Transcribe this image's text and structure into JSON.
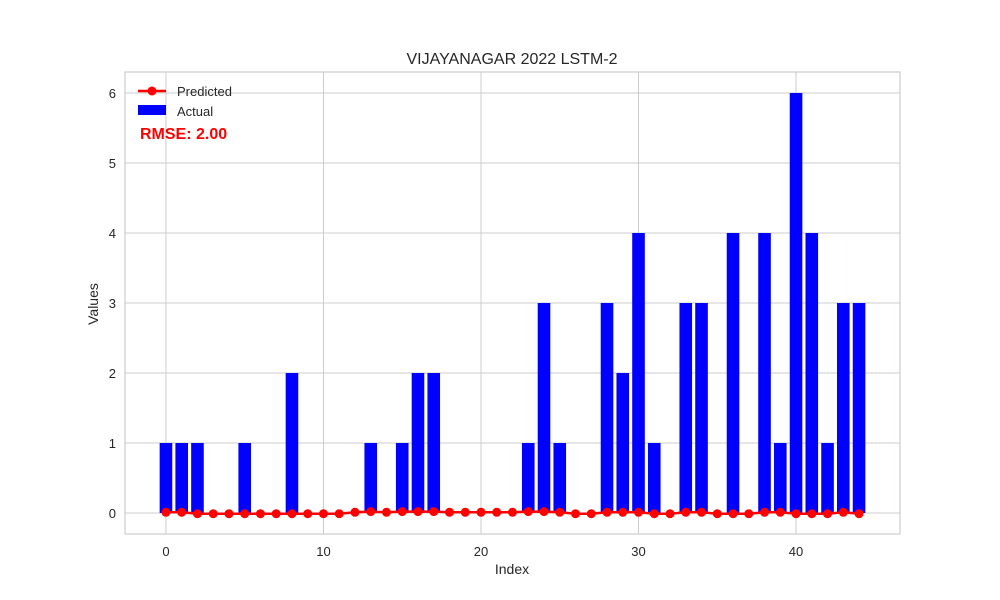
{
  "chart_data": {
    "type": "bar",
    "title": "VIJAYANAGAR 2022 LSTM-2",
    "xlabel": "Index",
    "ylabel": "Values",
    "xlim": [
      -2.6,
      46.6
    ],
    "ylim": [
      -0.3,
      6.3
    ],
    "xticks": [
      0,
      10,
      20,
      30,
      40
    ],
    "yticks": [
      0,
      1,
      2,
      3,
      4,
      5,
      6
    ],
    "grid": true,
    "legend_position": "top-left",
    "annotation": "RMSE: 2.00",
    "x": [
      0,
      1,
      2,
      3,
      4,
      5,
      6,
      7,
      8,
      9,
      10,
      11,
      12,
      13,
      14,
      15,
      16,
      17,
      18,
      19,
      20,
      21,
      22,
      23,
      24,
      25,
      26,
      27,
      28,
      29,
      30,
      31,
      32,
      33,
      34,
      35,
      36,
      37,
      38,
      39,
      40,
      41,
      42,
      43,
      44
    ],
    "series": [
      {
        "name": "Actual",
        "type": "bar",
        "color": "#0000ff",
        "values": [
          1,
          1,
          1,
          0,
          0,
          1,
          0,
          0,
          2,
          0,
          0,
          0,
          0,
          1,
          0,
          1,
          2,
          2,
          0,
          0,
          0,
          0,
          0,
          1,
          3,
          1,
          0,
          0,
          3,
          2,
          4,
          1,
          0,
          3,
          3,
          0,
          4,
          0,
          4,
          1,
          6,
          4,
          1,
          3,
          3
        ]
      },
      {
        "name": "Predicted",
        "type": "line",
        "color": "#ff0000",
        "values": [
          0.01,
          0.01,
          -0.01,
          -0.01,
          -0.01,
          -0.01,
          -0.01,
          -0.01,
          -0.01,
          -0.01,
          -0.01,
          -0.01,
          0.01,
          0.02,
          0.01,
          0.02,
          0.02,
          0.02,
          0.01,
          0.01,
          0.01,
          0.01,
          0.01,
          0.02,
          0.02,
          0.01,
          -0.01,
          -0.01,
          0.01,
          0.01,
          0.01,
          -0.01,
          -0.01,
          0.01,
          0.01,
          -0.01,
          -0.01,
          -0.01,
          0.01,
          0.01,
          -0.01,
          -0.01,
          -0.01,
          0.01,
          -0.01
        ]
      }
    ]
  },
  "colors": {
    "actual": "#0000ff",
    "predicted": "#ff0000",
    "annotation": "#ff0000",
    "grid": "#cccccc",
    "frame": "#cccccc",
    "text": "#262626"
  }
}
